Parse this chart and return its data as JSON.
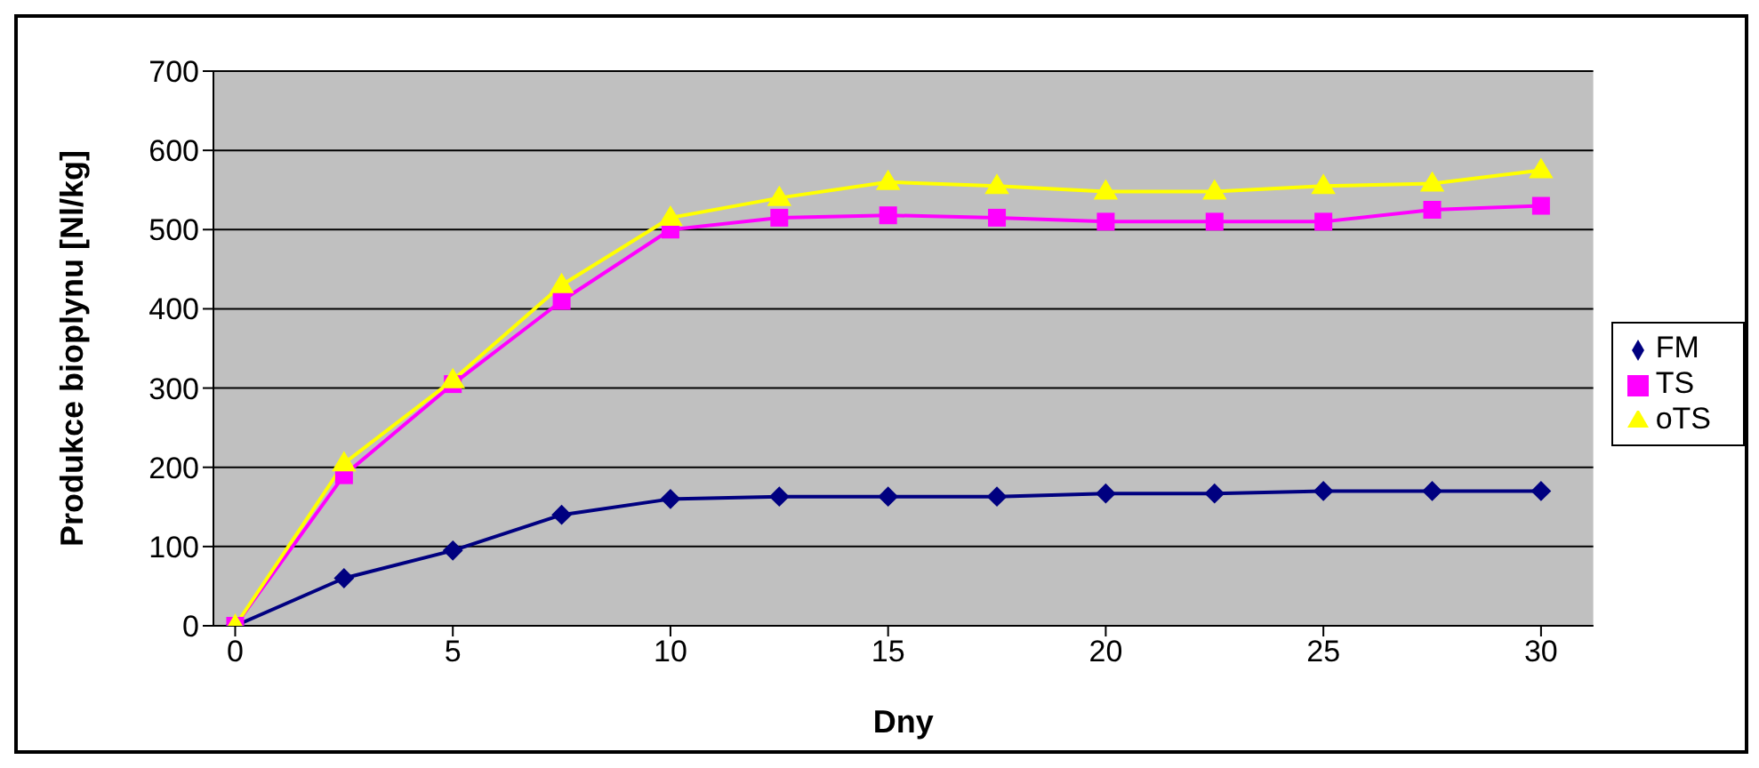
{
  "chart_data": {
    "type": "line",
    "xlabel": "Dny",
    "ylabel": "Produkce bioplynu [Nl/kg]",
    "x": [
      0,
      2.5,
      5,
      7.5,
      10,
      12.5,
      15,
      17.5,
      20,
      22.5,
      25,
      27.5,
      30
    ],
    "series": [
      {
        "name": "FM",
        "color": "#000080",
        "marker": "diamond",
        "values": [
          0,
          60,
          95,
          140,
          160,
          163,
          163,
          163,
          167,
          167,
          170,
          170,
          170
        ]
      },
      {
        "name": "TS",
        "color": "#ff00ff",
        "marker": "square",
        "values": [
          0,
          190,
          305,
          410,
          500,
          515,
          518,
          515,
          510,
          510,
          510,
          525,
          530
        ]
      },
      {
        "name": "oTS",
        "color": "#ffff00",
        "marker": "triangle",
        "values": [
          0,
          205,
          310,
          430,
          515,
          540,
          560,
          555,
          548,
          548,
          555,
          558,
          575
        ]
      }
    ],
    "xlim": [
      -0.5,
      31.2
    ],
    "xticks": [
      0,
      5,
      10,
      15,
      20,
      25,
      30
    ],
    "ylim": [
      0,
      700
    ],
    "yticks": [
      0,
      100,
      200,
      300,
      400,
      500,
      600,
      700
    ],
    "grid": "y",
    "legend": "right",
    "line_style": "solid"
  }
}
